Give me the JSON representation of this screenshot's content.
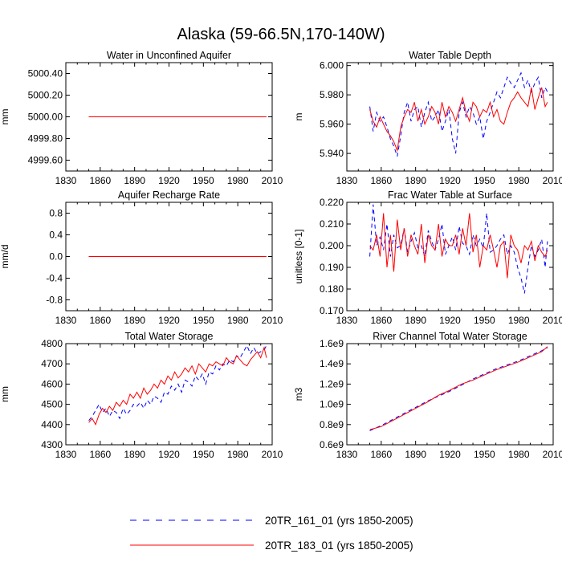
{
  "title": "Alaska (59-66.5N,170-140W)",
  "legend": [
    {
      "label": "20TR_161_01 (yrs 1850-2005)",
      "color": "#0000ff",
      "style": "dashed"
    },
    {
      "label": "20TR_183_01 (yrs 1850-2005)",
      "color": "#ff0000",
      "style": "solid"
    }
  ],
  "chart_data": [
    {
      "type": "line",
      "title": "Water in Unconfined Aquifer",
      "ylabel": "mm",
      "xlim": [
        1830,
        2010
      ],
      "ylim": [
        4999.5,
        5000.5
      ],
      "xticks": [
        1830,
        1860,
        1890,
        1920,
        1950,
        1980,
        2010
      ],
      "yticks": [
        {
          "value": 4999.6,
          "label": "4999.60"
        },
        {
          "value": 4999.8,
          "label": "4999.80"
        },
        {
          "value": 5000.0,
          "label": "5000.00"
        },
        {
          "value": 5000.2,
          "label": "5000.20"
        },
        {
          "value": 5000.4,
          "label": "5000.40"
        }
      ],
      "series": [
        {
          "name": "20TR_161_01 (yrs 1850-2005)",
          "x": [
            1850,
            2005
          ],
          "values": [
            5000.0,
            5000.0
          ]
        },
        {
          "name": "20TR_183_01 (yrs 1850-2005)",
          "x": [
            1850,
            2005
          ],
          "values": [
            5000.0,
            5000.0
          ]
        }
      ]
    },
    {
      "type": "line",
      "title": "Water Table Depth",
      "ylabel": "m",
      "xlim": [
        1830,
        2010
      ],
      "ylim": [
        5.928,
        6.002
      ],
      "xticks": [
        1830,
        1860,
        1890,
        1920,
        1950,
        1980,
        2010
      ],
      "yticks": [
        {
          "value": 5.94,
          "label": "5.940"
        },
        {
          "value": 5.96,
          "label": "5.960"
        },
        {
          "value": 5.98,
          "label": "5.980"
        },
        {
          "value": 6.0,
          "label": "6.000"
        }
      ],
      "series": [
        {
          "name": "20TR_161_01 (yrs 1850-2005)",
          "x": [
            1850,
            1853,
            1856,
            1859,
            1862,
            1865,
            1868,
            1871,
            1874,
            1877,
            1880,
            1883,
            1886,
            1889,
            1892,
            1895,
            1898,
            1901,
            1904,
            1907,
            1910,
            1913,
            1916,
            1919,
            1922,
            1925,
            1928,
            1931,
            1934,
            1937,
            1940,
            1943,
            1946,
            1949,
            1952,
            1955,
            1958,
            1961,
            1964,
            1967,
            1970,
            1973,
            1976,
            1979,
            1982,
            1985,
            1988,
            1991,
            1994,
            1997,
            2000,
            2003,
            2005
          ],
          "values": [
            5.972,
            5.955,
            5.968,
            5.962,
            5.965,
            5.958,
            5.95,
            5.945,
            5.938,
            5.952,
            5.968,
            5.975,
            5.962,
            5.97,
            5.972,
            5.958,
            5.968,
            5.975,
            5.962,
            5.965,
            5.97,
            5.955,
            5.962,
            5.97,
            5.95,
            5.94,
            5.968,
            5.975,
            5.965,
            5.972,
            5.968,
            5.96,
            5.965,
            5.95,
            5.962,
            5.968,
            5.975,
            5.982,
            5.978,
            5.985,
            5.992,
            5.988,
            5.985,
            5.99,
            5.995,
            5.985,
            5.99,
            5.982,
            5.988,
            5.992,
            5.978,
            5.985,
            5.982
          ]
        },
        {
          "name": "20TR_183_01 (yrs 1850-2005)",
          "x": [
            1850,
            1853,
            1856,
            1859,
            1862,
            1865,
            1868,
            1871,
            1874,
            1877,
            1880,
            1883,
            1886,
            1889,
            1892,
            1895,
            1898,
            1901,
            1904,
            1907,
            1910,
            1913,
            1916,
            1919,
            1922,
            1925,
            1928,
            1931,
            1934,
            1937,
            1940,
            1943,
            1946,
            1949,
            1952,
            1955,
            1958,
            1961,
            1964,
            1967,
            1970,
            1973,
            1976,
            1979,
            1982,
            1985,
            1988,
            1991,
            1994,
            1997,
            2000,
            2003,
            2005
          ],
          "values": [
            5.97,
            5.962,
            5.958,
            5.965,
            5.96,
            5.955,
            5.952,
            5.948,
            5.942,
            5.958,
            5.965,
            5.97,
            5.968,
            5.975,
            5.962,
            5.97,
            5.96,
            5.965,
            5.972,
            5.968,
            5.96,
            5.975,
            5.965,
            5.972,
            5.968,
            5.962,
            5.97,
            5.978,
            5.968,
            5.962,
            5.975,
            5.972,
            5.965,
            5.97,
            5.968,
            5.975,
            5.965,
            5.97,
            5.962,
            5.96,
            5.968,
            5.975,
            5.978,
            5.982,
            5.978,
            5.975,
            5.972,
            5.985,
            5.97,
            5.978,
            5.985,
            5.972,
            5.975
          ]
        }
      ]
    },
    {
      "type": "line",
      "title": "Aquifer Recharge Rate",
      "ylabel": "mm/d",
      "xlim": [
        1830,
        2010
      ],
      "ylim": [
        -1.0,
        1.0
      ],
      "xticks": [
        1830,
        1860,
        1890,
        1920,
        1950,
        1980,
        2010
      ],
      "yticks": [
        {
          "value": -0.8,
          "label": "-0.8"
        },
        {
          "value": -0.4,
          "label": "-0.4"
        },
        {
          "value": 0.0,
          "label": "0.0"
        },
        {
          "value": 0.4,
          "label": "0.4"
        },
        {
          "value": 0.8,
          "label": "0.8"
        }
      ],
      "series": [
        {
          "name": "20TR_161_01 (yrs 1850-2005)",
          "x": [
            1850,
            2005
          ],
          "values": [
            0.0,
            0.0
          ]
        },
        {
          "name": "20TR_183_01 (yrs 1850-2005)",
          "x": [
            1850,
            2005
          ],
          "values": [
            0.0,
            0.0
          ]
        }
      ]
    },
    {
      "type": "line",
      "title": "Frac Water Table at Surface",
      "ylabel": "unitless [0-1]",
      "xlim": [
        1830,
        2010
      ],
      "ylim": [
        0.17,
        0.22
      ],
      "xticks": [
        1830,
        1860,
        1890,
        1920,
        1950,
        1980,
        2010
      ],
      "yticks": [
        {
          "value": 0.17,
          "label": "0.170"
        },
        {
          "value": 0.18,
          "label": "0.180"
        },
        {
          "value": 0.19,
          "label": "0.190"
        },
        {
          "value": 0.2,
          "label": "0.200"
        },
        {
          "value": 0.21,
          "label": "0.210"
        },
        {
          "value": 0.22,
          "label": "0.220"
        }
      ],
      "series": [
        {
          "name": "20TR_161_01 (yrs 1850-2005)",
          "x": [
            1850,
            1853,
            1856,
            1859,
            1862,
            1865,
            1868,
            1871,
            1874,
            1877,
            1880,
            1883,
            1886,
            1889,
            1892,
            1895,
            1898,
            1901,
            1904,
            1907,
            1910,
            1913,
            1916,
            1919,
            1922,
            1925,
            1928,
            1931,
            1934,
            1937,
            1940,
            1943,
            1946,
            1949,
            1952,
            1955,
            1958,
            1961,
            1964,
            1967,
            1970,
            1973,
            1976,
            1979,
            1982,
            1985,
            1988,
            1991,
            1994,
            1997,
            2000,
            2003,
            2005
          ],
          "values": [
            0.195,
            0.219,
            0.2,
            0.204,
            0.198,
            0.21,
            0.195,
            0.205,
            0.199,
            0.2,
            0.208,
            0.197,
            0.202,
            0.206,
            0.199,
            0.2,
            0.195,
            0.207,
            0.202,
            0.198,
            0.203,
            0.21,
            0.196,
            0.2,
            0.204,
            0.198,
            0.209,
            0.201,
            0.2,
            0.196,
            0.205,
            0.2,
            0.203,
            0.199,
            0.215,
            0.197,
            0.198,
            0.2,
            0.203,
            0.205,
            0.196,
            0.2,
            0.197,
            0.19,
            0.185,
            0.178,
            0.19,
            0.2,
            0.195,
            0.198,
            0.203,
            0.19,
            0.202
          ]
        },
        {
          "name": "20TR_183_01 (yrs 1850-2005)",
          "x": [
            1850,
            1853,
            1856,
            1859,
            1862,
            1865,
            1868,
            1871,
            1874,
            1877,
            1880,
            1883,
            1886,
            1889,
            1892,
            1895,
            1898,
            1901,
            1904,
            1907,
            1910,
            1913,
            1916,
            1919,
            1922,
            1925,
            1928,
            1931,
            1934,
            1937,
            1940,
            1943,
            1946,
            1949,
            1952,
            1955,
            1958,
            1961,
            1964,
            1967,
            1970,
            1973,
            1976,
            1979,
            1982,
            1985,
            1988,
            1991,
            1994,
            1997,
            2000,
            2003,
            2005
          ],
          "values": [
            0.2,
            0.198,
            0.205,
            0.195,
            0.215,
            0.19,
            0.205,
            0.188,
            0.212,
            0.198,
            0.208,
            0.195,
            0.205,
            0.2,
            0.196,
            0.21,
            0.192,
            0.205,
            0.2,
            0.198,
            0.21,
            0.195,
            0.203,
            0.2,
            0.2,
            0.205,
            0.196,
            0.208,
            0.2,
            0.215,
            0.197,
            0.205,
            0.19,
            0.2,
            0.198,
            0.205,
            0.198,
            0.19,
            0.2,
            0.202,
            0.185,
            0.205,
            0.2,
            0.198,
            0.192,
            0.2,
            0.198,
            0.202,
            0.193,
            0.2,
            0.197,
            0.195,
            0.198
          ]
        }
      ]
    },
    {
      "type": "line",
      "title": "Total Water Storage",
      "ylabel": "mm",
      "xlim": [
        1830,
        2010
      ],
      "ylim": [
        4300,
        4800
      ],
      "xticks": [
        1830,
        1860,
        1890,
        1920,
        1950,
        1980,
        2010
      ],
      "yticks": [
        {
          "value": 4300,
          "label": "4300"
        },
        {
          "value": 4400,
          "label": "4400"
        },
        {
          "value": 4500,
          "label": "4500"
        },
        {
          "value": 4600,
          "label": "4600"
        },
        {
          "value": 4700,
          "label": "4700"
        },
        {
          "value": 4800,
          "label": "4800"
        }
      ],
      "series": [
        {
          "name": "20TR_161_01 (yrs 1850-2005)",
          "x": [
            1850,
            1853,
            1856,
            1859,
            1862,
            1865,
            1868,
            1871,
            1874,
            1877,
            1880,
            1883,
            1886,
            1889,
            1892,
            1895,
            1898,
            1901,
            1904,
            1907,
            1910,
            1913,
            1916,
            1919,
            1922,
            1925,
            1928,
            1931,
            1934,
            1937,
            1940,
            1943,
            1946,
            1949,
            1952,
            1955,
            1958,
            1961,
            1964,
            1967,
            1970,
            1973,
            1976,
            1979,
            1982,
            1985,
            1988,
            1991,
            1994,
            1997,
            2000,
            2003,
            2005
          ],
          "values": [
            4420,
            4440,
            4470,
            4500,
            4460,
            4480,
            4440,
            4470,
            4460,
            4430,
            4480,
            4450,
            4470,
            4500,
            4490,
            4510,
            4480,
            4520,
            4500,
            4540,
            4530,
            4510,
            4560,
            4550,
            4590,
            4570,
            4600,
            4560,
            4620,
            4610,
            4590,
            4640,
            4620,
            4650,
            4600,
            4660,
            4650,
            4690,
            4670,
            4700,
            4690,
            4720,
            4710,
            4740,
            4730,
            4760,
            4790,
            4750,
            4780,
            4750,
            4760,
            4770,
            4790
          ]
        },
        {
          "name": "20TR_183_01 (yrs 1850-2005)",
          "x": [
            1850,
            1853,
            1856,
            1859,
            1862,
            1865,
            1868,
            1871,
            1874,
            1877,
            1880,
            1883,
            1886,
            1889,
            1892,
            1895,
            1898,
            1901,
            1904,
            1907,
            1910,
            1913,
            1916,
            1919,
            1922,
            1925,
            1928,
            1931,
            1934,
            1937,
            1940,
            1943,
            1946,
            1949,
            1952,
            1955,
            1958,
            1961,
            1964,
            1967,
            1970,
            1973,
            1976,
            1979,
            1982,
            1985,
            1988,
            1991,
            1994,
            1997,
            2000,
            2003,
            2005
          ],
          "values": [
            4410,
            4430,
            4400,
            4450,
            4480,
            4460,
            4490,
            4470,
            4510,
            4490,
            4520,
            4500,
            4550,
            4530,
            4560,
            4530,
            4580,
            4550,
            4570,
            4600,
            4580,
            4620,
            4600,
            4640,
            4620,
            4660,
            4630,
            4650,
            4680,
            4660,
            4690,
            4650,
            4700,
            4680,
            4660,
            4700,
            4690,
            4710,
            4700,
            4690,
            4730,
            4710,
            4700,
            4740,
            4720,
            4700,
            4690,
            4720,
            4740,
            4760,
            4730,
            4780,
            4730
          ]
        }
      ]
    },
    {
      "type": "line",
      "title": "River Channel Total Water Storage",
      "ylabel": "m3",
      "xlim": [
        1830,
        2010
      ],
      "ylim": [
        600000000.0,
        1600000000.0
      ],
      "xticks": [
        1830,
        1860,
        1890,
        1920,
        1950,
        1980,
        2010
      ],
      "yticks": [
        {
          "value": 600000000.0,
          "label": "0.6e9"
        },
        {
          "value": 800000000.0,
          "label": "0.8e9"
        },
        {
          "value": 1000000000.0,
          "label": "1.0e9"
        },
        {
          "value": 1200000000.0,
          "label": "1.2e9"
        },
        {
          "value": 1400000000.0,
          "label": "1.4e9"
        },
        {
          "value": 1600000000.0,
          "label": "1.6e9"
        }
      ],
      "series": [
        {
          "name": "20TR_161_01 (yrs 1850-2005)",
          "x": [
            1850,
            1860,
            1870,
            1880,
            1890,
            1900,
            1910,
            1920,
            1930,
            1940,
            1950,
            1960,
            1970,
            1980,
            1990,
            2000,
            2005
          ],
          "values": [
            740000000.0,
            790000000.0,
            850000000.0,
            910000000.0,
            970000000.0,
            1030000000.0,
            1080000000.0,
            1130000000.0,
            1190000000.0,
            1250000000.0,
            1300000000.0,
            1350000000.0,
            1390000000.0,
            1430000000.0,
            1480000000.0,
            1530000000.0,
            1560000000.0
          ]
        },
        {
          "name": "20TR_183_01 (yrs 1850-2005)",
          "x": [
            1850,
            1860,
            1870,
            1880,
            1890,
            1900,
            1910,
            1920,
            1930,
            1940,
            1950,
            1960,
            1970,
            1980,
            1990,
            2000,
            2005
          ],
          "values": [
            750000000.0,
            780000000.0,
            840000000.0,
            900000000.0,
            960000000.0,
            1020000000.0,
            1090000000.0,
            1140000000.0,
            1200000000.0,
            1240000000.0,
            1290000000.0,
            1340000000.0,
            1380000000.0,
            1420000000.0,
            1470000000.0,
            1520000000.0,
            1570000000.0
          ]
        }
      ]
    }
  ]
}
